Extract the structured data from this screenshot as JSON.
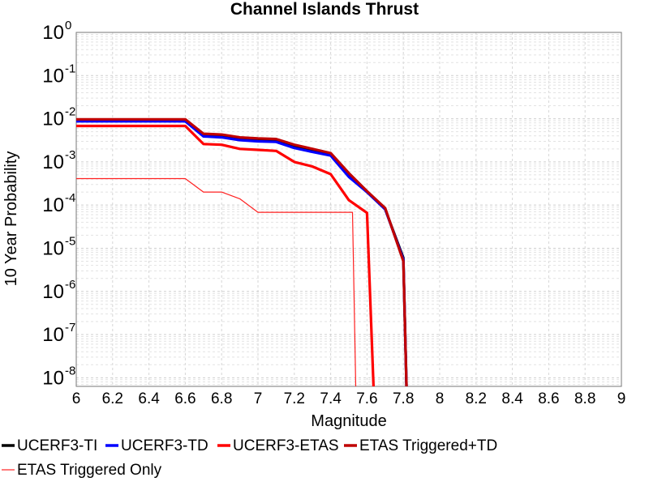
{
  "chart_data": {
    "type": "line",
    "title": "Channel Islands Thrust",
    "xlabel": "Magnitude",
    "ylabel": "10 Year Probability",
    "xlim": [
      6,
      9
    ],
    "ylim_exp": [
      -8.2,
      0
    ],
    "yscale": "log",
    "grid": true,
    "legend_placement": "bottom",
    "x_ticks": [
      "6",
      "6.2",
      "6.4",
      "6.6",
      "6.8",
      "7",
      "7.2",
      "7.4",
      "7.6",
      "7.8",
      "8",
      "8.2",
      "8.4",
      "8.6",
      "8.8",
      "9"
    ],
    "y_ticks": [
      {
        "base": "10",
        "exp": "0",
        "value": 0
      },
      {
        "base": "10",
        "exp": "-1",
        "value": -1
      },
      {
        "base": "10",
        "exp": "-2",
        "value": -2
      },
      {
        "base": "10",
        "exp": "-3",
        "value": -3
      },
      {
        "base": "10",
        "exp": "-4",
        "value": -4
      },
      {
        "base": "10",
        "exp": "-5",
        "value": -5
      },
      {
        "base": "10",
        "exp": "-6",
        "value": -6
      },
      {
        "base": "10",
        "exp": "-7",
        "value": -7
      },
      {
        "base": "10",
        "exp": "-8",
        "value": -8
      }
    ],
    "series": [
      {
        "name": "UCERF3-TI",
        "color": "#000000",
        "width": "thick",
        "x": [
          6.0,
          6.6,
          6.7,
          6.8,
          6.9,
          7.0,
          7.1,
          7.2,
          7.3,
          7.4,
          7.5,
          7.6,
          7.7,
          7.8,
          7.82
        ],
        "y": [
          0.0092,
          0.0092,
          0.0041,
          0.0039,
          0.0034,
          0.0032,
          0.0031,
          0.0022,
          0.0018,
          0.0015,
          0.0005,
          0.0002,
          8e-05,
          6e-06,
          1e-09
        ]
      },
      {
        "name": "UCERF3-TD",
        "color": "#0000ff",
        "width": "thick",
        "x": [
          6.0,
          6.6,
          6.7,
          6.8,
          6.9,
          7.0,
          7.1,
          7.2,
          7.3,
          7.4,
          7.5,
          7.6,
          7.7,
          7.8,
          7.82
        ],
        "y": [
          0.0087,
          0.0087,
          0.0039,
          0.0037,
          0.0032,
          0.003,
          0.0029,
          0.0021,
          0.0017,
          0.0014,
          0.00045,
          0.0002,
          8e-05,
          5.5e-06,
          1e-09
        ]
      },
      {
        "name": "UCERF3-ETAS",
        "color": "#ff0000",
        "width": "thick",
        "x": [
          6.0,
          6.6,
          6.7,
          6.8,
          6.9,
          7.0,
          7.1,
          7.2,
          7.3,
          7.4,
          7.5,
          7.6,
          7.64
        ],
        "y": [
          0.0068,
          0.0068,
          0.0026,
          0.0025,
          0.002,
          0.0019,
          0.0018,
          0.001,
          0.00078,
          0.00052,
          0.00013,
          6.6e-05,
          1e-09
        ]
      },
      {
        "name": "ETAS Triggered+TD",
        "color": "#c00000",
        "width": "thick",
        "x": [
          6.0,
          6.6,
          6.7,
          6.8,
          6.9,
          7.0,
          7.1,
          7.2,
          7.3,
          7.4,
          7.5,
          7.6,
          7.7,
          7.8,
          7.82
        ],
        "y": [
          0.0097,
          0.0097,
          0.0045,
          0.0043,
          0.0037,
          0.0035,
          0.0034,
          0.0025,
          0.002,
          0.0016,
          0.00055,
          0.00021,
          8.5e-05,
          5e-06,
          1e-09
        ]
      },
      {
        "name": "ETAS Triggered Only",
        "color": "#ff2020",
        "width": "thin",
        "x": [
          6.0,
          6.6,
          6.7,
          6.8,
          6.9,
          7.0,
          7.1,
          7.2,
          7.3,
          7.4,
          7.5,
          7.52,
          7.54
        ],
        "y": [
          0.00041,
          0.00041,
          0.0002,
          0.0002,
          0.00014,
          6.8e-05,
          6.8e-05,
          6.8e-05,
          6.8e-05,
          6.8e-05,
          6.8e-05,
          6.8e-05,
          1e-09
        ]
      }
    ]
  }
}
